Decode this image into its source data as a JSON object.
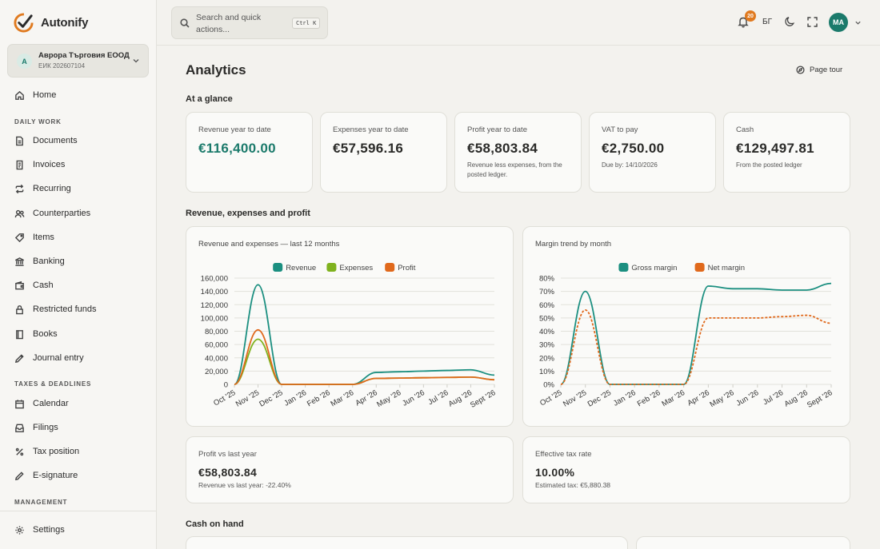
{
  "brand": {
    "name": "Autonify"
  },
  "organization": {
    "avatar": "A",
    "name": "Аврора Търговия ЕООД",
    "sub": "ЕИК 202607104"
  },
  "nav": {
    "home": "Home",
    "section_daily": "DAILY WORK",
    "documents": "Documents",
    "invoices": "Invoices",
    "recurring": "Recurring",
    "counterparties": "Counterparties",
    "items": "Items",
    "banking": "Banking",
    "cash": "Cash",
    "restricted_funds": "Restricted funds",
    "books": "Books",
    "journal_entry": "Journal entry",
    "section_taxes": "TAXES & DEADLINES",
    "calendar": "Calendar",
    "filings": "Filings",
    "tax_position": "Tax position",
    "e_signature": "E-signature",
    "section_management": "MANAGEMENT",
    "settings": "Settings"
  },
  "topbar": {
    "search_placeholder": "Search and quick actions...",
    "search_shortcut": "Ctrl K",
    "notification_count": "20",
    "language": "БГ",
    "user_initials": "MA"
  },
  "page": {
    "title": "Analytics",
    "tour_label": "Page tour"
  },
  "sections": {
    "glance": "At a glance",
    "rev_exp_profit": "Revenue, expenses and profit",
    "cash_on_hand": "Cash on hand"
  },
  "kpis": [
    {
      "label": "Revenue year to date",
      "value": "€116,400.00",
      "note": ""
    },
    {
      "label": "Expenses year to date",
      "value": "€57,596.16",
      "note": ""
    },
    {
      "label": "Profit year to date",
      "value": "€58,803.84",
      "note": "Revenue less expenses, from the posted ledger."
    },
    {
      "label": "VAT to pay",
      "value": "€2,750.00",
      "note": "Due by: 14/10/2026"
    },
    {
      "label": "Cash",
      "value": "€129,497.81",
      "note": "From the posted ledger"
    }
  ],
  "cards": {
    "profit_vs": {
      "label": "Profit vs last year",
      "value": "€58,803.84",
      "note": "Revenue vs last year: -22.40%"
    },
    "tax_rate": {
      "label": "Effective tax rate",
      "value": "10.00%",
      "note": "Estimated tax: €5,880.38"
    }
  },
  "colors": {
    "accent": "#1b7a6b",
    "revenue": "#1b8f80",
    "expenses": "#7fb21e",
    "profit": "#e0691c",
    "badge": "#e07a1f"
  },
  "chart_data": [
    {
      "type": "line",
      "title": "Revenue and expenses — last 12 months",
      "categories": [
        "Oct '25",
        "Nov '25",
        "Dec '25",
        "Jan '26",
        "Feb '26",
        "Mar '26",
        "Apr '26",
        "May '26",
        "Jun '26",
        "Jul '26",
        "Aug '26",
        "Sept '26"
      ],
      "series": [
        {
          "name": "Revenue",
          "values": [
            0,
            150000,
            0,
            0,
            0,
            0,
            18000,
            19000,
            20000,
            21000,
            22000,
            14000
          ]
        },
        {
          "name": "Expenses",
          "values": [
            0,
            68000,
            0,
            0,
            0,
            0,
            9000,
            9500,
            10000,
            10500,
            11000,
            7000
          ]
        },
        {
          "name": "Profit",
          "values": [
            0,
            82000,
            0,
            0,
            0,
            0,
            9000,
            9500,
            10000,
            10500,
            11000,
            7000
          ]
        }
      ],
      "ylim": [
        0,
        160000
      ],
      "yticks": [
        "0",
        "20,000",
        "40,000",
        "60,000",
        "80,000",
        "100,000",
        "120,000",
        "140,000",
        "160,000"
      ],
      "legend": "top",
      "grid": true
    },
    {
      "type": "line",
      "title": "Margin trend by month",
      "categories": [
        "Oct '25",
        "Nov '25",
        "Dec '25",
        "Jan '26",
        "Feb '26",
        "Mar '26",
        "Apr '26",
        "May '26",
        "Jun '26",
        "Jul '26",
        "Aug '26",
        "Sept '26"
      ],
      "series": [
        {
          "name": "Gross margin",
          "values": [
            0,
            70,
            0,
            0,
            0,
            0,
            74,
            72,
            72,
            71,
            71,
            76
          ]
        },
        {
          "name": "Net margin",
          "values": [
            0,
            56,
            0,
            0,
            0,
            0,
            50,
            50,
            50,
            51,
            52,
            46
          ]
        }
      ],
      "ylim": [
        0,
        80
      ],
      "yticks": [
        "0%",
        "10%",
        "20%",
        "30%",
        "40%",
        "50%",
        "60%",
        "70%",
        "80%"
      ],
      "legend": "top",
      "grid": true
    }
  ]
}
